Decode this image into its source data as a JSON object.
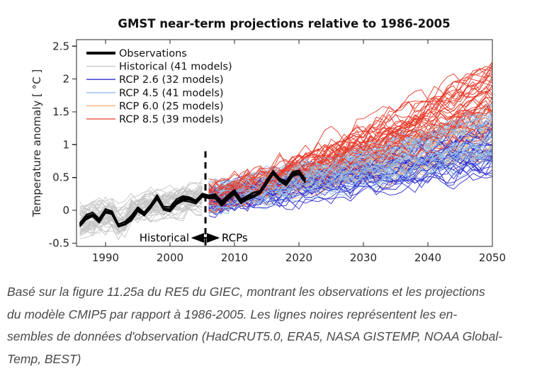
{
  "figure": {
    "title": "GMST near-term projections relative to 1986-2005",
    "ylabel": "Temperature anomaly  [ °C ]",
    "annotation": {
      "left_label": "Historical",
      "right_label": "RCPs"
    }
  },
  "legend": {
    "items": [
      {
        "label": "Observations",
        "color": "#000000",
        "lw": 4
      },
      {
        "label": "Historical (41 models)",
        "color": "#c5c5c5",
        "lw": 1.3
      },
      {
        "label": "RCP 2.6 (32 models)",
        "color": "#2f2fd0",
        "lw": 1.3
      },
      {
        "label": "RCP 4.5 (41 models)",
        "color": "#8fbce9",
        "lw": 1.3
      },
      {
        "label": "RCP 6.0 (25 models)",
        "color": "#f5ad75",
        "lw": 1.3
      },
      {
        "label": "RCP 8.5 (39 models)",
        "color": "#e73a2a",
        "lw": 1.3
      }
    ]
  },
  "chart_data": {
    "type": "line",
    "title": "GMST near-term projections relative to 1986-2005",
    "xlabel": "",
    "ylabel": "Temperature anomaly [ °C ]",
    "xlim": [
      1985.5,
      2050
    ],
    "ylim": [
      -0.55,
      2.6
    ],
    "xticks": [
      1990,
      2000,
      2010,
      2020,
      2030,
      2040,
      2050
    ],
    "yticks": [
      -0.5,
      0,
      0.5,
      1,
      1.5,
      2,
      2.5
    ],
    "grid": false,
    "legend_position": "upper-left-inside",
    "divider_year": 2005.5,
    "divider_top_value": 0.9,
    "observations": {
      "name": "Observations",
      "color": "#000000",
      "n_lines": 5,
      "years_range": [
        1986,
        2021
      ],
      "values": [
        -0.22,
        -0.1,
        -0.07,
        -0.16,
        0.0,
        -0.04,
        -0.23,
        -0.2,
        -0.12,
        0.02,
        -0.06,
        0.06,
        0.2,
        0.03,
        0.01,
        0.13,
        0.18,
        0.17,
        0.13,
        0.23,
        0.2,
        0.22,
        0.1,
        0.2,
        0.28,
        0.14,
        0.2,
        0.24,
        0.28,
        0.43,
        0.58,
        0.47,
        0.41,
        0.55,
        0.58,
        0.45
      ]
    },
    "ensembles": [
      {
        "name": "Historical",
        "models": 41,
        "color": "#c5c5c5",
        "start_year": 1986,
        "end_year": 2005,
        "start_mean": -0.15,
        "start_spread": 0.22,
        "end_mean": 0.2,
        "end_spread": 0.22,
        "noise": 0.12,
        "curve": 1,
        "dip_years": [
          1992,
          1993
        ],
        "dip": 0.13
      },
      {
        "name": "RCP 2.6",
        "models": 32,
        "color": "#2f2fd0",
        "start_year": 2006,
        "end_year": 2050,
        "start_mean": 0.18,
        "start_spread": 0.16,
        "end_mean": 0.95,
        "end_spread": 0.45,
        "noise": 0.13,
        "curve": 1.1
      },
      {
        "name": "RCP 4.5",
        "models": 41,
        "color": "#8fbce9",
        "start_year": 2006,
        "end_year": 2050,
        "start_mean": 0.18,
        "start_spread": 0.16,
        "end_mean": 1.15,
        "end_spread": 0.4,
        "noise": 0.13,
        "curve": 1.1
      },
      {
        "name": "RCP 6.0",
        "models": 25,
        "color": "#f5ad75",
        "start_year": 2006,
        "end_year": 2050,
        "start_mean": 0.18,
        "start_spread": 0.16,
        "end_mean": 1.1,
        "end_spread": 0.35,
        "noise": 0.13,
        "curve": 1.1
      },
      {
        "name": "RCP 8.5",
        "models": 39,
        "color": "#e73a2a",
        "start_year": 2006,
        "end_year": 2050,
        "start_mean": 0.2,
        "start_spread": 0.16,
        "end_mean": 1.72,
        "end_spread": 0.55,
        "noise": 0.14,
        "curve": 1.15
      }
    ]
  },
  "caption": {
    "lines": [
      "Basé sur la figure 11.25a du RE5 du GIEC, montrant les observations et les projections",
      "du modèle CMIP5 par rapport à 1986-2005. Les lignes noires représentent les en-",
      "sembles de données d'observation (HadCRUT5.0, ERA5, NASA GISTEMP, NOAA Global-",
      "Temp, BEST)"
    ]
  }
}
